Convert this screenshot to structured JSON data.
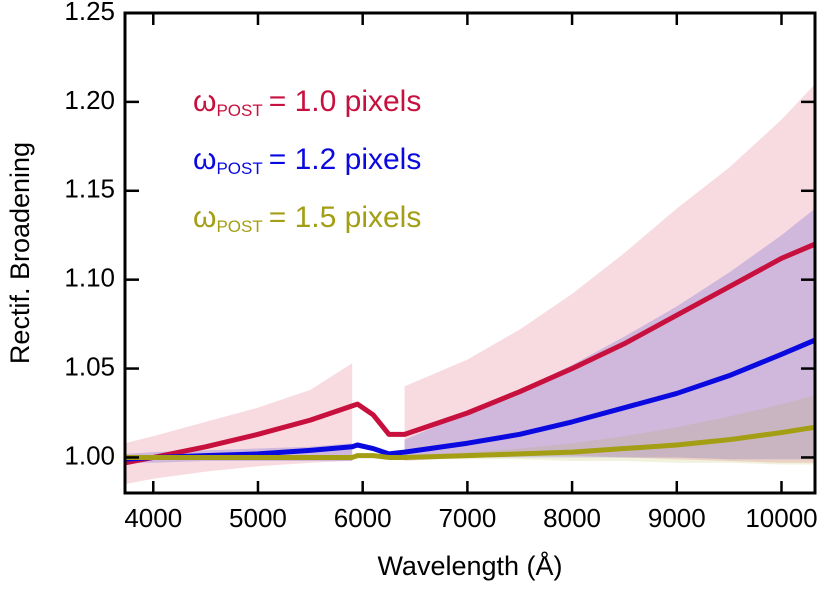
{
  "chart_data": {
    "type": "line",
    "x_label": "Wavelength (Å)",
    "y_label": "Rectif. Broadening",
    "legend_symbol": "ω",
    "legend_subscript": "POST",
    "x": [
      3730,
      4000,
      4500,
      5000,
      5500,
      5900,
      5950,
      6100,
      6250,
      6400,
      7000,
      7500,
      8000,
      8500,
      9000,
      9500,
      10000,
      10320
    ],
    "xlim": [
      3730,
      10320
    ],
    "ylim": [
      0.98,
      1.25
    ],
    "xticks": [
      4000,
      5000,
      6000,
      7000,
      8000,
      9000,
      10000
    ],
    "yticks": [
      {
        "value": 1.0,
        "label": "1.00"
      },
      1.05,
      {
        "value": 1.1,
        "label": "1.10"
      },
      1.15,
      {
        "value": 1.2,
        "label": "1.20"
      },
      1.25
    ],
    "series": [
      {
        "name": "= 1.0 pixels",
        "color": "#c8103e",
        "band_color": "rgba(215,40,75,0.17)",
        "values": [
          0.997,
          1.0,
          1.006,
          1.013,
          1.021,
          1.029,
          1.03,
          1.024,
          1.013,
          1.013,
          1.025,
          1.037,
          1.05,
          1.064,
          1.08,
          1.096,
          1.112,
          1.12
        ],
        "band_upper": [
          1.008,
          1.012,
          1.02,
          1.028,
          1.038,
          1.053,
          null,
          null,
          null,
          1.04,
          1.055,
          1.072,
          1.092,
          1.115,
          1.14,
          1.163,
          1.19,
          1.21
        ],
        "band_lower": [
          0.985,
          0.988,
          0.992,
          0.995,
          0.997,
          0.998,
          null,
          null,
          null,
          0.998,
          1.0,
          1.001,
          1.001,
          1.0,
          0.999,
          0.998,
          0.997,
          0.997
        ]
      },
      {
        "name": "= 1.2 pixels",
        "color": "#0a0ae0",
        "band_color": "rgba(70,60,210,0.22)",
        "values": [
          0.999,
          1.0,
          1.001,
          1.002,
          1.004,
          1.006,
          1.007,
          1.005,
          1.002,
          1.003,
          1.008,
          1.013,
          1.02,
          1.028,
          1.036,
          1.046,
          1.058,
          1.066
        ],
        "band_upper": [
          1.002,
          1.003,
          1.004,
          1.005,
          1.006,
          1.008,
          null,
          null,
          null,
          1.01,
          1.025,
          1.038,
          1.052,
          1.068,
          1.085,
          1.104,
          1.125,
          1.14
        ],
        "band_lower": [
          0.997,
          0.997,
          0.998,
          0.998,
          0.998,
          0.998,
          null,
          null,
          null,
          0.999,
          1.0,
          1.0,
          1.0,
          1.0,
          1.0,
          0.999,
          0.999,
          0.999
        ]
      },
      {
        "name": "= 1.5 pixels",
        "color": "#a39e14",
        "band_color": "rgba(170,165,50,0.16)",
        "values": [
          1.0,
          1.0,
          1.0,
          1.0,
          1.0,
          1.0,
          1.001,
          1.001,
          1.0,
          1.0,
          1.001,
          1.002,
          1.003,
          1.005,
          1.007,
          1.01,
          1.014,
          1.017
        ],
        "band_upper": [
          1.001,
          1.001,
          1.001,
          1.001,
          1.001,
          1.001,
          null,
          null,
          null,
          1.001,
          1.003,
          1.005,
          1.008,
          1.012,
          1.017,
          1.023,
          1.03,
          1.035
        ],
        "band_lower": [
          0.999,
          0.999,
          0.999,
          0.999,
          0.999,
          0.999,
          null,
          null,
          null,
          0.999,
          0.999,
          0.999,
          0.998,
          0.998,
          0.997,
          0.997,
          0.996,
          0.996
        ]
      }
    ]
  }
}
